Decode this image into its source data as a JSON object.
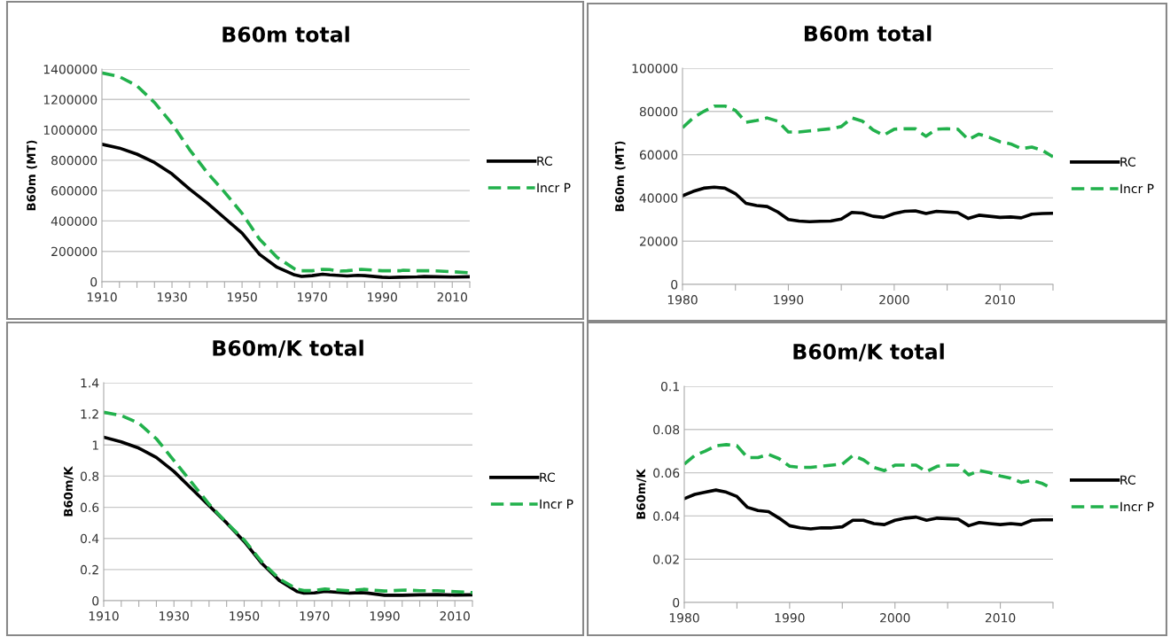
{
  "chart_data": [
    {
      "type": "line",
      "title": "B60m total",
      "ylabel": "B60m (MT)",
      "grid": "y",
      "legend": "right",
      "xlim": [
        1910,
        2015
      ],
      "ylim": [
        0,
        1400000
      ],
      "xticks": [
        1910,
        {
          "value": 1915,
          "label": null
        },
        {
          "value": 1920,
          "label": null
        },
        {
          "value": 1925,
          "label": null
        },
        1930,
        {
          "value": 1935,
          "label": null
        },
        {
          "value": 1940,
          "label": null
        },
        {
          "value": 1945,
          "label": null
        },
        1950,
        {
          "value": 1955,
          "label": null
        },
        {
          "value": 1960,
          "label": null
        },
        {
          "value": 1965,
          "label": null
        },
        1970,
        {
          "value": 1975,
          "label": null
        },
        {
          "value": 1980,
          "label": null
        },
        {
          "value": 1985,
          "label": null
        },
        1990,
        {
          "value": 1995,
          "label": null
        },
        {
          "value": 2000,
          "label": null
        },
        {
          "value": 2005,
          "label": null
        },
        2010,
        {
          "value": 2015,
          "label": null
        }
      ],
      "yticks": [
        0,
        200000,
        400000,
        600000,
        800000,
        1000000,
        1200000,
        1400000
      ],
      "series": [
        {
          "name": "RC",
          "color": "#000000",
          "line_style": "solid",
          "x": [
            1910,
            1915,
            1920,
            1925,
            1930,
            1935,
            1940,
            1945,
            1950,
            1955,
            1960,
            1965,
            1967,
            1970,
            1973,
            1975,
            1980,
            1983,
            1985,
            1990,
            1992,
            1995,
            2000,
            2002,
            2005,
            2010,
            2015
          ],
          "values": [
            905000,
            880000,
            840000,
            785000,
            710000,
            610000,
            520000,
            420000,
            320000,
            180000,
            95000,
            45000,
            35000,
            40000,
            50000,
            45000,
            38000,
            42000,
            40000,
            30000,
            28000,
            30000,
            32000,
            34000,
            33000,
            31000,
            33000
          ]
        },
        {
          "name": "Incr P",
          "color": "#22b14c",
          "line_style": "dashed",
          "x": [
            1910,
            1915,
            1920,
            1925,
            1930,
            1935,
            1940,
            1945,
            1950,
            1955,
            1960,
            1965,
            1967,
            1970,
            1973,
            1975,
            1978,
            1980,
            1984,
            1990,
            1995,
            1996,
            2000,
            2005,
            2010,
            2015
          ],
          "values": [
            1375000,
            1350000,
            1290000,
            1180000,
            1040000,
            870000,
            720000,
            590000,
            450000,
            280000,
            160000,
            85000,
            72000,
            72000,
            82000,
            80000,
            70000,
            72000,
            82000,
            72000,
            72000,
            76000,
            72000,
            72000,
            66000,
            59000
          ]
        }
      ]
    },
    {
      "type": "line",
      "title": "B60m total",
      "ylabel": "B60m (MT)",
      "grid": "y",
      "legend": "right",
      "xlim": [
        1980,
        2015
      ],
      "ylim": [
        0,
        100000
      ],
      "xticks": [
        1980,
        {
          "value": 1985,
          "label": null
        },
        1990,
        {
          "value": 1995,
          "label": null
        },
        2000,
        {
          "value": 2005,
          "label": null
        },
        2010,
        {
          "value": 2015,
          "label": null
        }
      ],
      "yticks": [
        0,
        20000,
        40000,
        60000,
        80000,
        100000
      ],
      "series": [
        {
          "name": "RC",
          "color": "#000000",
          "line_style": "solid",
          "x": [
            1980,
            1981,
            1982,
            1983,
            1984,
            1985,
            1986,
            1987,
            1988,
            1989,
            1990,
            1991,
            1992,
            1993,
            1994,
            1995,
            1996,
            1997,
            1998,
            1999,
            2000,
            2001,
            2002,
            2003,
            2004,
            2005,
            2006,
            2007,
            2008,
            2009,
            2010,
            2011,
            2012,
            2013,
            2014,
            2015
          ],
          "values": [
            41000,
            43000,
            44500,
            45000,
            44500,
            42000,
            37500,
            36500,
            36000,
            33500,
            30000,
            29300,
            29000,
            29200,
            29300,
            30200,
            33300,
            33000,
            31500,
            31000,
            32800,
            33800,
            34000,
            32800,
            33800,
            33500,
            33200,
            30500,
            32000,
            31500,
            31000,
            31200,
            30800,
            32500,
            32800,
            32900
          ]
        },
        {
          "name": "Incr P",
          "color": "#22b14c",
          "line_style": "dashed",
          "x": [
            1980,
            1981,
            1982,
            1983,
            1984,
            1985,
            1986,
            1987,
            1988,
            1989,
            1990,
            1991,
            1992,
            1993,
            1994,
            1995,
            1996,
            1997,
            1998,
            1999,
            2000,
            2001,
            2002,
            2003,
            2004,
            2005,
            2006,
            2007,
            2008,
            2009,
            2010,
            2011,
            2012,
            2013,
            2014,
            2015
          ],
          "values": [
            72500,
            77000,
            80000,
            82500,
            82500,
            80500,
            75000,
            75800,
            77000,
            75500,
            70500,
            70500,
            71000,
            71500,
            72000,
            73000,
            77000,
            75500,
            71500,
            69000,
            71800,
            72000,
            72000,
            68500,
            71800,
            72000,
            71800,
            67000,
            69500,
            68000,
            66000,
            65000,
            62800,
            63500,
            62000,
            59000
          ]
        }
      ]
    },
    {
      "type": "line",
      "title": "B60m/K total",
      "ylabel": "B60m/K",
      "grid": "y",
      "legend": "right",
      "xlim": [
        1910,
        2015
      ],
      "ylim": [
        0,
        1.4
      ],
      "xticks": [
        1910,
        {
          "value": 1915,
          "label": null
        },
        {
          "value": 1920,
          "label": null
        },
        {
          "value": 1925,
          "label": null
        },
        1930,
        {
          "value": 1935,
          "label": null
        },
        {
          "value": 1940,
          "label": null
        },
        {
          "value": 1945,
          "label": null
        },
        1950,
        {
          "value": 1955,
          "label": null
        },
        {
          "value": 1960,
          "label": null
        },
        {
          "value": 1965,
          "label": null
        },
        1970,
        {
          "value": 1975,
          "label": null
        },
        {
          "value": 1980,
          "label": null
        },
        {
          "value": 1985,
          "label": null
        },
        1990,
        {
          "value": 1995,
          "label": null
        },
        {
          "value": 2000,
          "label": null
        },
        {
          "value": 2005,
          "label": null
        },
        2010,
        {
          "value": 2015,
          "label": null
        }
      ],
      "yticks": [
        0,
        0.2,
        0.4,
        0.6,
        0.8,
        1,
        1.2,
        1.4
      ],
      "series": [
        {
          "name": "RC",
          "color": "#000000",
          "line_style": "solid",
          "x": [
            1910,
            1915,
            1920,
            1925,
            1930,
            1935,
            1940,
            1945,
            1950,
            1955,
            1960,
            1965,
            1967,
            1970,
            1973,
            1980,
            1983,
            1985,
            1990,
            1995,
            2000,
            2005,
            2010,
            2015
          ],
          "values": [
            1.05,
            1.02,
            0.98,
            0.92,
            0.83,
            0.72,
            0.61,
            0.5,
            0.38,
            0.24,
            0.13,
            0.06,
            0.048,
            0.05,
            0.06,
            0.048,
            0.052,
            0.049,
            0.035,
            0.035,
            0.038,
            0.039,
            0.036,
            0.038
          ]
        },
        {
          "name": "Incr P",
          "color": "#22b14c",
          "line_style": "dashed",
          "x": [
            1910,
            1915,
            1920,
            1925,
            1930,
            1935,
            1940,
            1945,
            1950,
            1955,
            1960,
            1965,
            1967,
            1970,
            1973,
            1980,
            1984,
            1990,
            1996,
            2000,
            2005,
            2010,
            2015
          ],
          "values": [
            1.21,
            1.19,
            1.14,
            1.04,
            0.9,
            0.76,
            0.62,
            0.5,
            0.39,
            0.25,
            0.14,
            0.075,
            0.065,
            0.065,
            0.075,
            0.064,
            0.073,
            0.062,
            0.068,
            0.064,
            0.064,
            0.058,
            0.052
          ]
        }
      ]
    },
    {
      "type": "line",
      "title": "B60m/K total",
      "ylabel": "B60m/K",
      "grid": "y",
      "legend": "right",
      "xlim": [
        1980,
        2015
      ],
      "ylim": [
        0,
        0.1
      ],
      "xticks": [
        1980,
        {
          "value": 1985,
          "label": null
        },
        1990,
        {
          "value": 1995,
          "label": null
        },
        2000,
        {
          "value": 2005,
          "label": null
        },
        2010,
        {
          "value": 2015,
          "label": null
        }
      ],
      "yticks": [
        0,
        0.02,
        0.04,
        0.06,
        0.08,
        0.1
      ],
      "series": [
        {
          "name": "RC",
          "color": "#000000",
          "line_style": "solid",
          "x": [
            1980,
            1981,
            1982,
            1983,
            1984,
            1985,
            1986,
            1987,
            1988,
            1989,
            1990,
            1991,
            1992,
            1993,
            1994,
            1995,
            1996,
            1997,
            1998,
            1999,
            2000,
            2001,
            2002,
            2003,
            2004,
            2005,
            2006,
            2007,
            2008,
            2009,
            2010,
            2011,
            2012,
            2013,
            2014,
            2015
          ],
          "values": [
            0.048,
            0.05,
            0.051,
            0.052,
            0.051,
            0.049,
            0.044,
            0.0425,
            0.042,
            0.039,
            0.0355,
            0.0345,
            0.034,
            0.0345,
            0.0345,
            0.035,
            0.038,
            0.038,
            0.0365,
            0.036,
            0.038,
            0.039,
            0.0395,
            0.038,
            0.039,
            0.0388,
            0.0385,
            0.0355,
            0.037,
            0.0365,
            0.036,
            0.0365,
            0.036,
            0.038,
            0.0382,
            0.0382
          ]
        },
        {
          "name": "Incr P",
          "color": "#22b14c",
          "line_style": "dashed",
          "x": [
            1980,
            1981,
            1982,
            1983,
            1984,
            1985,
            1986,
            1987,
            1988,
            1989,
            1990,
            1991,
            1992,
            1993,
            1994,
            1995,
            1996,
            1997,
            1998,
            1999,
            2000,
            2001,
            2002,
            2003,
            2004,
            2005,
            2006,
            2007,
            2008,
            2009,
            2010,
            2011,
            2012,
            2013,
            2014,
            2015
          ],
          "values": [
            0.064,
            0.068,
            0.07,
            0.0725,
            0.073,
            0.0725,
            0.067,
            0.067,
            0.0685,
            0.0665,
            0.063,
            0.0625,
            0.0625,
            0.063,
            0.0635,
            0.064,
            0.068,
            0.066,
            0.0625,
            0.061,
            0.0635,
            0.0635,
            0.0635,
            0.0605,
            0.063,
            0.0635,
            0.0635,
            0.059,
            0.061,
            0.06,
            0.0585,
            0.0575,
            0.0555,
            0.0565,
            0.055,
            0.0525
          ]
        }
      ]
    }
  ]
}
